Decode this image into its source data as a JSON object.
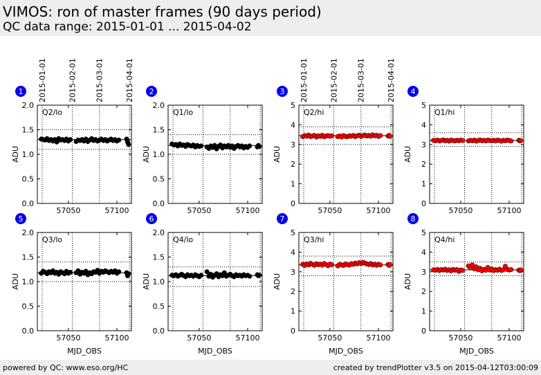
{
  "header": {
    "title": "VIMOS: ron of master frames (90 days period)",
    "subtitle": "QC data range: 2015-01-01 ... 2015-04-02"
  },
  "footer": {
    "left": "powered by QC: www.eso.org/HC",
    "right": "created by trendPlotter v3.5 on 2015-04-12T03:00:09"
  },
  "colors": {
    "lo": "#000000",
    "hi": "#ff0000",
    "badge": "#0000ee"
  },
  "chart_data": {
    "type": "scatter",
    "date_axis": {
      "labels": [
        "2015-01-01",
        "2015-02-01",
        "2015-03-01",
        "2015-04-01"
      ],
      "mjd": [
        57023,
        57054,
        57082,
        57113
      ]
    },
    "panels": [
      {
        "badge": "1",
        "name": "Q2/lo",
        "color": "#000000",
        "xlabel": "MJD_OBS",
        "ylabel": "ADU",
        "xlim": [
          57018,
          57115
        ],
        "ylim": [
          0,
          2.0
        ],
        "yticks": [
          "0.0",
          "0.5",
          "1.0",
          "1.5",
          "2.0"
        ],
        "xticks": [
          57050,
          57100
        ],
        "ref": 1.3,
        "thresholds": [
          1.1,
          1.5
        ],
        "x": [
          57022,
          57024,
          57026,
          57028,
          57030,
          57032,
          57034,
          57036,
          57038,
          57040,
          57042,
          57044,
          57046,
          57048,
          57050,
          57052,
          57058,
          57060,
          57062,
          57064,
          57066,
          57068,
          57070,
          57072,
          57074,
          57076,
          57078,
          57080,
          57082,
          57084,
          57086,
          57088,
          57090,
          57092,
          57094,
          57096,
          57098,
          57100,
          57102,
          57110,
          57111,
          57112
        ],
        "y": [
          1.31,
          1.3,
          1.29,
          1.32,
          1.28,
          1.3,
          1.27,
          1.3,
          1.25,
          1.32,
          1.29,
          1.3,
          1.28,
          1.31,
          1.27,
          1.3,
          1.26,
          1.29,
          1.28,
          1.3,
          1.27,
          1.31,
          1.26,
          1.29,
          1.32,
          1.28,
          1.3,
          1.27,
          1.29,
          1.31,
          1.28,
          1.3,
          1.27,
          1.29,
          1.31,
          1.28,
          1.3,
          1.27,
          1.29,
          1.31,
          1.25,
          1.2
        ]
      },
      {
        "badge": "2",
        "name": "Q1/lo",
        "color": "#000000",
        "xlabel": "MJD_OBS",
        "ylabel": "ADU",
        "xlim": [
          57018,
          57115
        ],
        "ylim": [
          0,
          2.0
        ],
        "yticks": [
          "0.0",
          "0.5",
          "1.0",
          "1.5",
          "2.0"
        ],
        "xticks": [
          57050,
          57100
        ],
        "ref": 1.18,
        "thresholds": [
          1.0,
          1.4
        ],
        "x": [
          57022,
          57024,
          57026,
          57028,
          57030,
          57032,
          57034,
          57036,
          57038,
          57040,
          57042,
          57044,
          57046,
          57048,
          57050,
          57052,
          57058,
          57060,
          57062,
          57064,
          57066,
          57068,
          57070,
          57072,
          57074,
          57076,
          57078,
          57080,
          57082,
          57084,
          57086,
          57088,
          57090,
          57092,
          57094,
          57096,
          57098,
          57100,
          57102,
          57110,
          57111,
          57112
        ],
        "y": [
          1.21,
          1.19,
          1.2,
          1.17,
          1.21,
          1.18,
          1.19,
          1.16,
          1.2,
          1.18,
          1.17,
          1.19,
          1.15,
          1.18,
          1.16,
          1.17,
          1.15,
          1.12,
          1.17,
          1.14,
          1.18,
          1.11,
          1.16,
          1.19,
          1.13,
          1.17,
          1.15,
          1.18,
          1.14,
          1.17,
          1.12,
          1.16,
          1.18,
          1.15,
          1.17,
          1.13,
          1.16,
          1.14,
          1.17,
          1.15,
          1.18,
          1.16
        ]
      },
      {
        "badge": "3",
        "name": "Q2/hi",
        "color": "#ff0000",
        "xlabel": "MJD_OBS",
        "ylabel": "ADU",
        "xlim": [
          57018,
          57115
        ],
        "ylim": [
          0,
          5
        ],
        "yticks": [
          "0",
          "1",
          "2",
          "3",
          "4",
          "5"
        ],
        "xticks": [
          57050,
          57100
        ],
        "ref": 3.45,
        "thresholds": [
          3.0,
          3.9
        ],
        "x": [
          57022,
          57024,
          57026,
          57028,
          57030,
          57032,
          57034,
          57036,
          57038,
          57040,
          57042,
          57044,
          57046,
          57048,
          57050,
          57052,
          57058,
          57060,
          57062,
          57064,
          57066,
          57068,
          57070,
          57072,
          57074,
          57076,
          57078,
          57080,
          57082,
          57084,
          57086,
          57088,
          57090,
          57092,
          57094,
          57096,
          57098,
          57100,
          57102,
          57110,
          57111,
          57112
        ],
        "y": [
          3.4,
          3.45,
          3.42,
          3.48,
          3.4,
          3.43,
          3.46,
          3.38,
          3.44,
          3.41,
          3.47,
          3.39,
          3.43,
          3.45,
          3.42,
          3.44,
          3.4,
          3.43,
          3.38,
          3.45,
          3.41,
          3.39,
          3.44,
          3.42,
          3.46,
          3.4,
          3.44,
          3.47,
          3.41,
          3.45,
          3.48,
          3.43,
          3.46,
          3.42,
          3.49,
          3.44,
          3.47,
          3.41,
          3.45,
          3.43,
          3.46,
          3.42
        ]
      },
      {
        "badge": "4",
        "name": "Q1/hi",
        "color": "#ff0000",
        "xlabel": "MJD_OBS",
        "ylabel": "ADU",
        "xlim": [
          57018,
          57115
        ],
        "ylim": [
          0,
          5
        ],
        "yticks": [
          "0",
          "1",
          "2",
          "3",
          "4",
          "5"
        ],
        "xticks": [
          57050,
          57100
        ],
        "ref": 3.2,
        "thresholds": [
          2.9,
          3.6
        ],
        "x": [
          57022,
          57024,
          57026,
          57028,
          57030,
          57032,
          57034,
          57036,
          57038,
          57040,
          57042,
          57044,
          57046,
          57048,
          57050,
          57052,
          57058,
          57060,
          57062,
          57064,
          57066,
          57068,
          57070,
          57072,
          57074,
          57076,
          57078,
          57080,
          57082,
          57084,
          57086,
          57088,
          57090,
          57092,
          57094,
          57096,
          57098,
          57100,
          57102,
          57110,
          57111,
          57112
        ],
        "y": [
          3.21,
          3.19,
          3.22,
          3.18,
          3.2,
          3.23,
          3.19,
          3.21,
          3.17,
          3.22,
          3.2,
          3.18,
          3.21,
          3.19,
          3.22,
          3.2,
          3.18,
          3.21,
          3.19,
          3.22,
          3.17,
          3.2,
          3.23,
          3.19,
          3.21,
          3.18,
          3.22,
          3.2,
          3.19,
          3.21,
          3.18,
          3.22,
          3.2,
          3.17,
          3.21,
          3.19,
          3.22,
          3.2,
          3.18,
          3.21,
          3.19,
          3.2
        ]
      },
      {
        "badge": "5",
        "name": "Q3/lo",
        "color": "#000000",
        "xlabel": "MJD_OBS",
        "ylabel": "ADU",
        "xlim": [
          57018,
          57115
        ],
        "ylim": [
          0,
          2.0
        ],
        "yticks": [
          "0.0",
          "0.5",
          "1.0",
          "1.5",
          "2.0"
        ],
        "xticks": [
          57050,
          57100
        ],
        "ref": 1.18,
        "thresholds": [
          1.0,
          1.4
        ],
        "x": [
          57022,
          57024,
          57026,
          57028,
          57030,
          57032,
          57034,
          57036,
          57038,
          57040,
          57042,
          57044,
          57046,
          57048,
          57050,
          57052,
          57058,
          57060,
          57062,
          57064,
          57066,
          57068,
          57070,
          57072,
          57074,
          57076,
          57078,
          57080,
          57082,
          57084,
          57086,
          57088,
          57090,
          57092,
          57094,
          57096,
          57098,
          57100,
          57102,
          57110,
          57111,
          57112
        ],
        "y": [
          1.17,
          1.21,
          1.19,
          1.16,
          1.2,
          1.18,
          1.22,
          1.17,
          1.19,
          1.15,
          1.2,
          1.18,
          1.16,
          1.21,
          1.17,
          1.19,
          1.18,
          1.22,
          1.15,
          1.19,
          1.17,
          1.21,
          1.14,
          1.18,
          1.16,
          1.2,
          1.19,
          1.23,
          1.17,
          1.21,
          1.19,
          1.22,
          1.2,
          1.18,
          1.21,
          1.19,
          1.22,
          1.17,
          1.2,
          1.18,
          1.12,
          1.16
        ]
      },
      {
        "badge": "6",
        "name": "Q4/lo",
        "color": "#000000",
        "xlabel": "MJD_OBS",
        "ylabel": "ADU",
        "xlim": [
          57018,
          57115
        ],
        "ylim": [
          0,
          2.0
        ],
        "yticks": [
          "0.0",
          "0.5",
          "1.0",
          "1.5",
          "2.0"
        ],
        "xticks": [
          57050,
          57100
        ],
        "ref": 1.12,
        "thresholds": [
          0.9,
          1.3
        ],
        "x": [
          57022,
          57024,
          57026,
          57028,
          57030,
          57032,
          57034,
          57036,
          57038,
          57040,
          57042,
          57044,
          57046,
          57048,
          57050,
          57052,
          57058,
          57060,
          57062,
          57064,
          57066,
          57068,
          57070,
          57072,
          57074,
          57076,
          57078,
          57080,
          57082,
          57084,
          57086,
          57088,
          57090,
          57092,
          57094,
          57096,
          57098,
          57100,
          57102,
          57110,
          57111,
          57112
        ],
        "y": [
          1.13,
          1.12,
          1.14,
          1.11,
          1.13,
          1.15,
          1.12,
          1.1,
          1.14,
          1.12,
          1.13,
          1.11,
          1.14,
          1.12,
          1.1,
          1.13,
          1.2,
          1.11,
          1.15,
          1.09,
          1.13,
          1.16,
          1.1,
          1.14,
          1.12,
          1.18,
          1.11,
          1.13,
          1.15,
          1.12,
          1.1,
          1.14,
          1.12,
          1.13,
          1.11,
          1.14,
          1.12,
          1.13,
          1.11,
          1.14,
          1.12,
          1.13
        ]
      },
      {
        "badge": "7",
        "name": "Q3/hi",
        "color": "#ff0000",
        "xlabel": "MJD_OBS",
        "ylabel": "ADU",
        "xlim": [
          57018,
          57115
        ],
        "ylim": [
          0,
          5
        ],
        "yticks": [
          "0",
          "1",
          "2",
          "3",
          "4",
          "5"
        ],
        "xticks": [
          57050,
          57100
        ],
        "ref": 3.35,
        "thresholds": [
          2.8,
          3.8
        ],
        "x": [
          57022,
          57024,
          57026,
          57028,
          57030,
          57032,
          57034,
          57036,
          57038,
          57040,
          57042,
          57044,
          57046,
          57048,
          57050,
          57052,
          57058,
          57060,
          57062,
          57064,
          57066,
          57068,
          57070,
          57072,
          57074,
          57076,
          57078,
          57080,
          57082,
          57084,
          57086,
          57088,
          57090,
          57092,
          57094,
          57096,
          57098,
          57100,
          57102,
          57110,
          57111,
          57112
        ],
        "y": [
          3.38,
          3.32,
          3.4,
          3.35,
          3.43,
          3.37,
          3.33,
          3.41,
          3.36,
          3.39,
          3.34,
          3.42,
          3.37,
          3.31,
          3.39,
          3.36,
          3.3,
          3.38,
          3.35,
          3.32,
          3.4,
          3.36,
          3.34,
          3.41,
          3.38,
          3.44,
          3.4,
          3.46,
          3.42,
          3.48,
          3.44,
          3.4,
          3.37,
          3.42,
          3.35,
          3.39,
          3.33,
          3.38,
          3.35,
          3.37,
          3.33,
          3.36
        ]
      },
      {
        "badge": "8",
        "name": "Q4/hi",
        "color": "#ff0000",
        "xlabel": "MJD_OBS",
        "ylabel": "ADU",
        "xlim": [
          57018,
          57115
        ],
        "ylim": [
          0,
          5
        ],
        "yticks": [
          "0",
          "1",
          "2",
          "3",
          "4",
          "5"
        ],
        "xticks": [
          57050,
          57100
        ],
        "ref": 3.1,
        "thresholds": [
          2.8,
          3.5
        ],
        "x": [
          57022,
          57024,
          57026,
          57028,
          57030,
          57032,
          57034,
          57036,
          57038,
          57040,
          57042,
          57044,
          57046,
          57048,
          57050,
          57052,
          57058,
          57060,
          57062,
          57064,
          57066,
          57068,
          57070,
          57072,
          57074,
          57076,
          57078,
          57080,
          57082,
          57084,
          57086,
          57088,
          57090,
          57092,
          57094,
          57096,
          57098,
          57100,
          57102,
          57110,
          57111,
          57112
        ],
        "y": [
          3.1,
          3.08,
          3.12,
          3.06,
          3.11,
          3.09,
          3.13,
          3.07,
          3.1,
          3.05,
          3.12,
          3.08,
          3.11,
          3.02,
          3.09,
          3.07,
          3.3,
          3.2,
          3.35,
          3.15,
          3.25,
          3.1,
          3.18,
          3.05,
          3.12,
          3.08,
          3.22,
          3.09,
          3.14,
          3.06,
          3.11,
          3.08,
          3.13,
          3.07,
          3.1,
          3.28,
          3.12,
          3.09,
          3.11,
          3.08,
          3.06,
          3.1
        ]
      }
    ]
  }
}
